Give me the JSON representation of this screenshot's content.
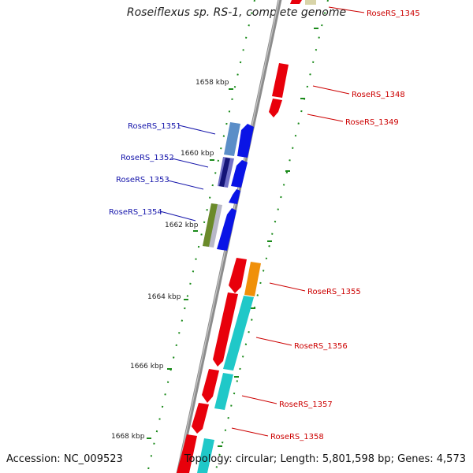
{
  "title": "Roseiflexus sp. RS-1, complete genome",
  "footer": {
    "accession_label": "Accession:",
    "accession": "NC_009523",
    "topology_label": "Topology:",
    "topology": "circular",
    "length_label": "Length:",
    "length": "5,801,598 bp",
    "genes_label": "Genes:",
    "genes": "4,573"
  },
  "colors": {
    "backbone": "#8c8c8c",
    "plus_strand": "#e8000b",
    "minus_strand": "#0a14e6",
    "ticks": "#1a8a1a",
    "right_labels": "#cc0000",
    "left_labels": "#1414aa"
  },
  "ticks": [
    {
      "label": "1658 kbp"
    },
    {
      "label": "1660 kbp"
    },
    {
      "label": "1662 kbp"
    },
    {
      "label": "1664 kbp"
    },
    {
      "label": "1666 kbp"
    },
    {
      "label": "1668 kbp"
    }
  ],
  "gene_labels_right": [
    "RoseRS_1345",
    "RoseRS_1348",
    "RoseRS_1349",
    "RoseRS_1355",
    "RoseRS_1356",
    "RoseRS_1357",
    "RoseRS_1358"
  ],
  "gene_labels_left": [
    "RoseRS_1351",
    "RoseRS_1352",
    "RoseRS_1353",
    "RoseRS_1354"
  ]
}
